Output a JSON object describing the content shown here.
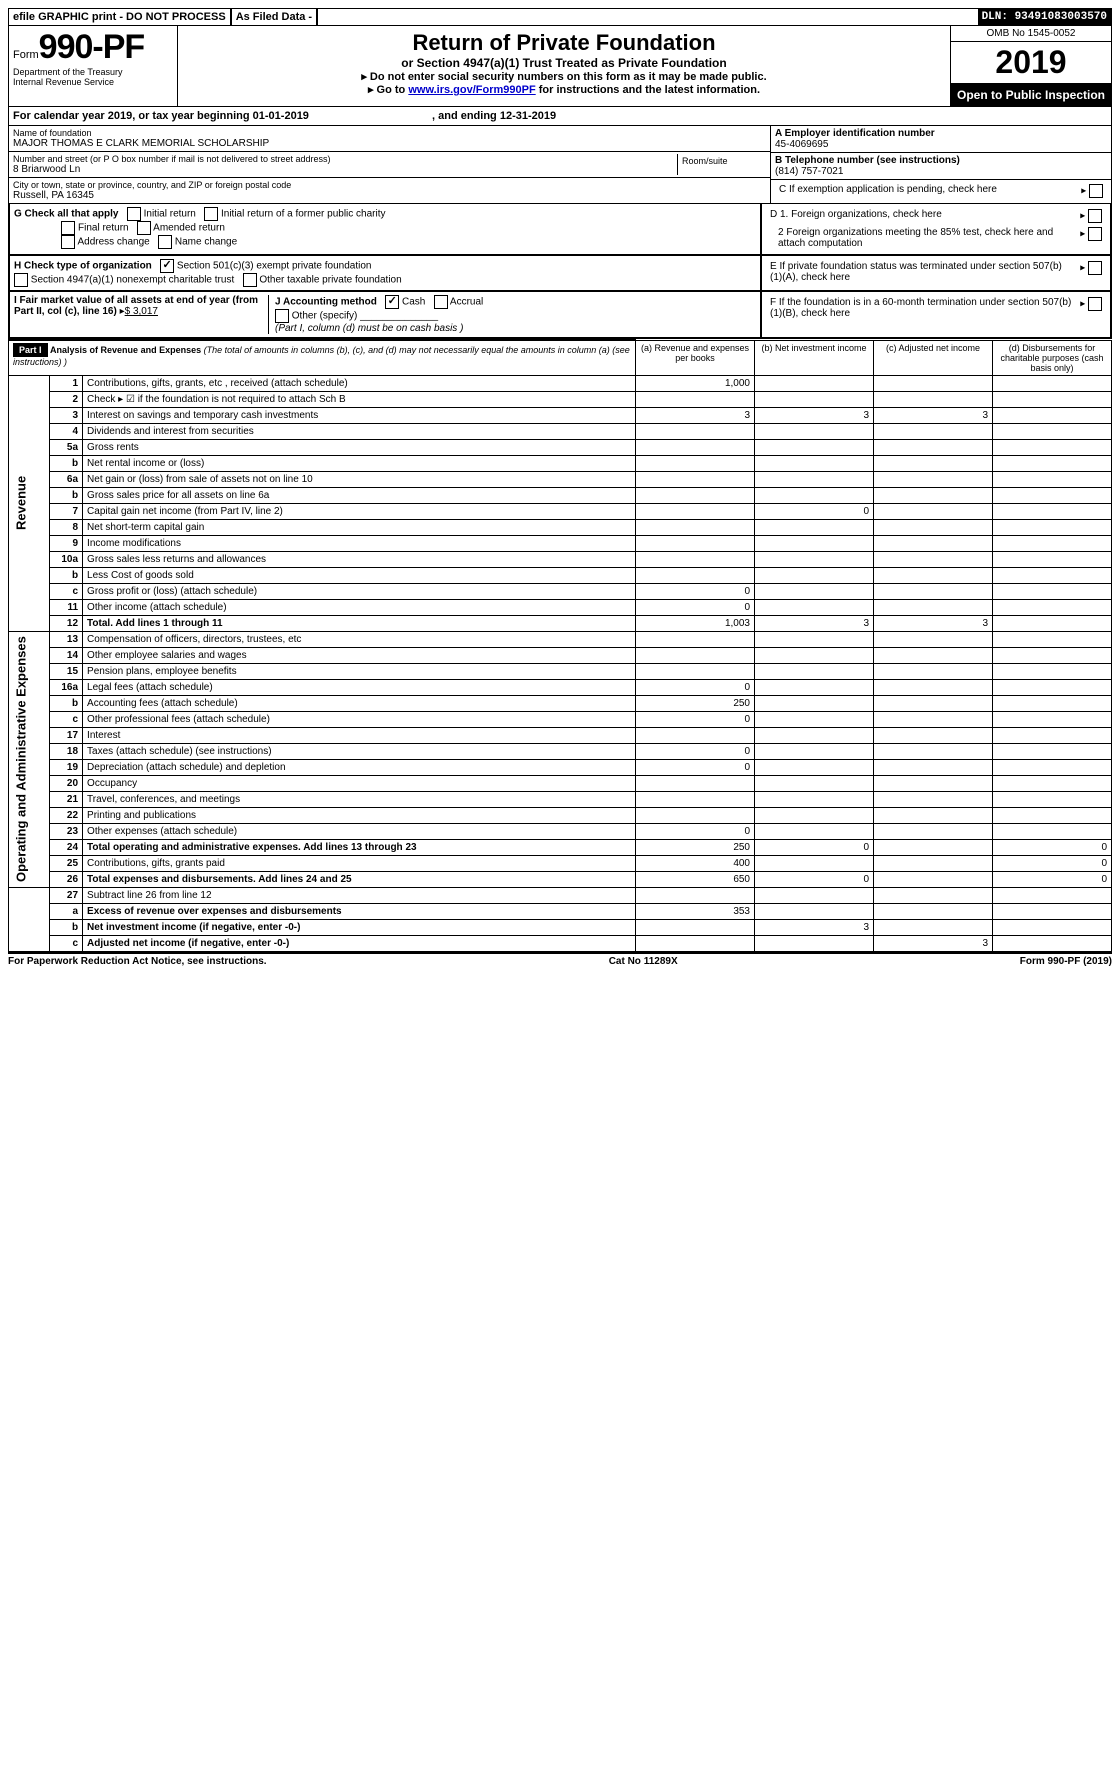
{
  "header": {
    "efile": "efile GRAPHIC print - DO NOT PROCESS",
    "asFiled": "As Filed Data -",
    "dln": "DLN: 93491083003570"
  },
  "formId": {
    "form": "Form",
    "number": "990-PF",
    "dept": "Department of the Treasury",
    "irs": "Internal Revenue Service"
  },
  "title": {
    "main": "Return of Private Foundation",
    "sub": "or Section 4947(a)(1) Trust Treated as Private Foundation",
    "inst1": "▸ Do not enter social security numbers on this form as it may be made public.",
    "inst2_pre": "▸ Go to ",
    "inst2_link": "www.irs.gov/Form990PF",
    "inst2_post": " for instructions and the latest information."
  },
  "right": {
    "omb": "OMB No 1545-0052",
    "year": "2019",
    "open": "Open to Public Inspection"
  },
  "cal": {
    "line_pre": "For calendar year 2019, or tax year beginning ",
    "begin": "01-01-2019",
    "mid": ", and ending ",
    "end": "12-31-2019"
  },
  "entity": {
    "name_lbl": "Name of foundation",
    "name": "MAJOR THOMAS E CLARK MEMORIAL SCHOLARSHIP",
    "addr_lbl": "Number and street (or P O  box number if mail is not delivered to street address)",
    "addr": "8 Briarwood Ln",
    "room_lbl": "Room/suite",
    "city_lbl": "City or town, state or province, country, and ZIP or foreign postal code",
    "city": "Russell, PA  16345"
  },
  "boxA": {
    "lbl": "A Employer identification number",
    "val": "45-4069695"
  },
  "boxB": {
    "lbl": "B Telephone number (see instructions)",
    "val": "(814) 757-7021"
  },
  "boxC": {
    "lbl": "C If exemption application is pending, check here"
  },
  "boxD": {
    "d1": "D 1. Foreign organizations, check here",
    "d2": "2 Foreign organizations meeting the 85% test, check here and attach computation"
  },
  "boxE": {
    "lbl": "E  If private foundation status was terminated under section 507(b)(1)(A), check here"
  },
  "boxF": {
    "lbl": "F  If the foundation is in a 60-month termination under section 507(b)(1)(B), check here"
  },
  "G": {
    "lbl": "G Check all that apply",
    "opts": [
      "Initial return",
      "Initial return of a former public charity",
      "Final return",
      "Amended return",
      "Address change",
      "Name change"
    ]
  },
  "H": {
    "lbl": "H Check type of organization",
    "o1": "Section 501(c)(3) exempt private foundation",
    "o2": "Section 4947(a)(1) nonexempt charitable trust",
    "o3": "Other taxable private foundation"
  },
  "I": {
    "lbl": "I Fair market value of all assets at end of year (from Part II, col  (c), line 16)",
    "val": "$  3,017"
  },
  "J": {
    "lbl": "J Accounting method",
    "cash": "Cash",
    "accrual": "Accrual",
    "other": "Other (specify)",
    "note": "(Part I, column (d) must be on cash basis )"
  },
  "part1": {
    "hdr": "Part I",
    "title": "Analysis of Revenue and Expenses",
    "title_note": "(The total of amounts in columns (b), (c), and (d) may not necessarily equal the amounts in column (a) (see instructions) )",
    "cols": {
      "a": "(a)  Revenue and expenses per books",
      "b": "(b) Net investment income",
      "c": "(c) Adjusted net income",
      "d": "(d) Disbursements for charitable purposes (cash basis only)"
    },
    "section_rev": "Revenue",
    "section_exp": "Operating and Administrative Expenses",
    "rows": [
      {
        "n": "1",
        "d": "Contributions, gifts, grants, etc , received (attach schedule)",
        "a": "1,000"
      },
      {
        "n": "2",
        "d": "Check ▸ ☑ if the foundation is not required to attach Sch  B"
      },
      {
        "n": "3",
        "d": "Interest on savings and temporary cash investments",
        "a": "3",
        "b": "3",
        "c": "3"
      },
      {
        "n": "4",
        "d": "Dividends and interest from securities"
      },
      {
        "n": "5a",
        "d": "Gross rents"
      },
      {
        "n": "b",
        "d": "Net rental income or (loss)"
      },
      {
        "n": "6a",
        "d": "Net gain or (loss) from sale of assets not on line 10"
      },
      {
        "n": "b",
        "d": "Gross sales price for all assets on line 6a"
      },
      {
        "n": "7",
        "d": "Capital gain net income (from Part IV, line 2)",
        "b": "0"
      },
      {
        "n": "8",
        "d": "Net short-term capital gain"
      },
      {
        "n": "9",
        "d": "Income modifications"
      },
      {
        "n": "10a",
        "d": "Gross sales less returns and allowances"
      },
      {
        "n": "b",
        "d": "Less  Cost of goods sold"
      },
      {
        "n": "c",
        "d": "Gross profit or (loss) (attach schedule)",
        "a": "0"
      },
      {
        "n": "11",
        "d": "Other income (attach schedule)",
        "a": "0"
      },
      {
        "n": "12",
        "d": "Total. Add lines 1 through 11",
        "a": "1,003",
        "b": "3",
        "c": "3",
        "bold": true
      }
    ],
    "exp_rows": [
      {
        "n": "13",
        "d": "Compensation of officers, directors, trustees, etc"
      },
      {
        "n": "14",
        "d": "Other employee salaries and wages"
      },
      {
        "n": "15",
        "d": "Pension plans, employee benefits"
      },
      {
        "n": "16a",
        "d": "Legal fees (attach schedule)",
        "a": "0"
      },
      {
        "n": "b",
        "d": "Accounting fees (attach schedule)",
        "a": "250"
      },
      {
        "n": "c",
        "d": "Other professional fees (attach schedule)",
        "a": "0"
      },
      {
        "n": "17",
        "d": "Interest"
      },
      {
        "n": "18",
        "d": "Taxes (attach schedule) (see instructions)",
        "a": "0"
      },
      {
        "n": "19",
        "d": "Depreciation (attach schedule) and depletion",
        "a": "0"
      },
      {
        "n": "20",
        "d": "Occupancy"
      },
      {
        "n": "21",
        "d": "Travel, conferences, and meetings"
      },
      {
        "n": "22",
        "d": "Printing and publications"
      },
      {
        "n": "23",
        "d": "Other expenses (attach schedule)",
        "a": "0"
      },
      {
        "n": "24",
        "d": "Total operating and administrative expenses. Add lines 13 through 23",
        "a": "250",
        "b": "0",
        "dd": "0",
        "bold": true
      },
      {
        "n": "25",
        "d": "Contributions, gifts, grants paid",
        "a": "400",
        "dd": "0"
      },
      {
        "n": "26",
        "d": "Total expenses and disbursements. Add lines 24 and 25",
        "a": "650",
        "b": "0",
        "dd": "0",
        "bold": true
      }
    ],
    "net_rows": [
      {
        "n": "27",
        "d": "Subtract line 26 from line 12"
      },
      {
        "n": "a",
        "d": "Excess of revenue over expenses and disbursements",
        "a": "353",
        "bold": true
      },
      {
        "n": "b",
        "d": "Net investment income (if negative, enter -0-)",
        "b": "3",
        "bold": true
      },
      {
        "n": "c",
        "d": "Adjusted net income (if negative, enter -0-)",
        "c": "3",
        "bold": true
      }
    ]
  },
  "footer": {
    "left": "For Paperwork Reduction Act Notice, see instructions.",
    "mid": "Cat  No  11289X",
    "right": "Form 990-PF (2019)"
  }
}
